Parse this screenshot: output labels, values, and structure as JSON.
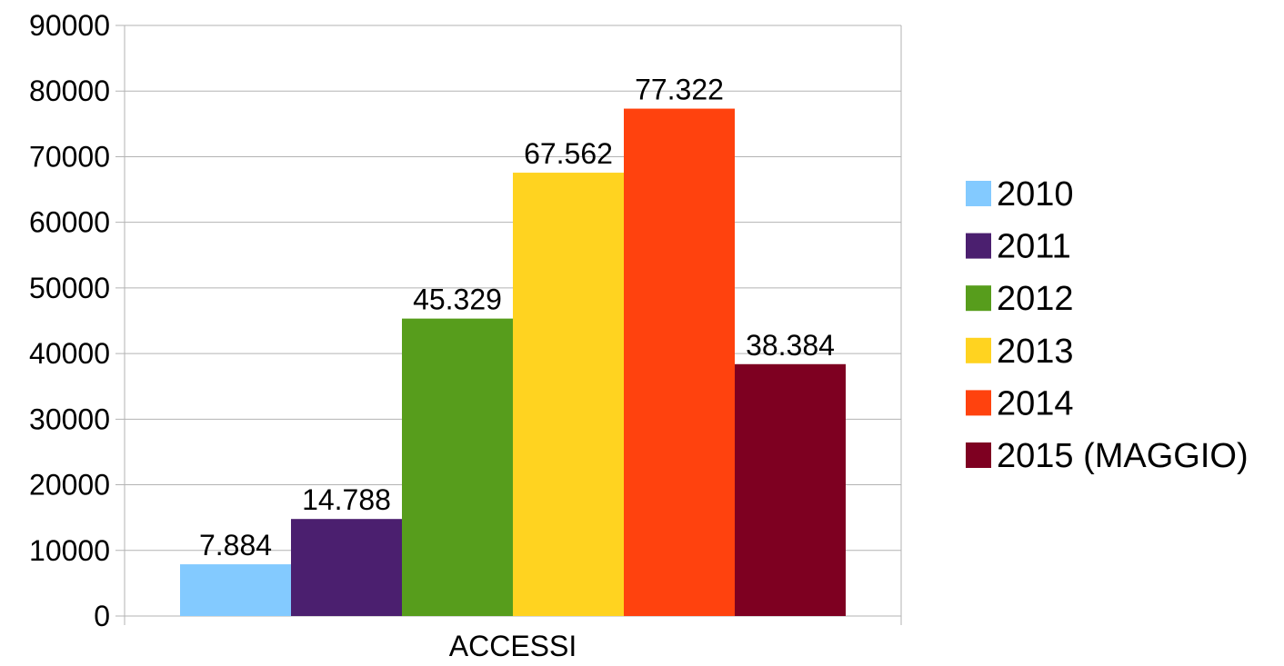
{
  "chart_data": {
    "type": "bar",
    "categories": [
      "ACCESSI"
    ],
    "series": [
      {
        "name": "2010",
        "values": [
          7884
        ],
        "label": "7.884",
        "color": "#83caff"
      },
      {
        "name": "2011",
        "values": [
          14788
        ],
        "label": "14.788",
        "color": "#4b1f6f"
      },
      {
        "name": "2012",
        "values": [
          45329
        ],
        "label": "45.329",
        "color": "#579d1c"
      },
      {
        "name": "2013",
        "values": [
          67562
        ],
        "label": "67.562",
        "color": "#ffd320"
      },
      {
        "name": "2014",
        "values": [
          77322
        ],
        "label": "77.322",
        "color": "#ff420e"
      },
      {
        "name": "2015 (MAGGIO)",
        "values": [
          38384
        ],
        "label": "38.384",
        "color": "#7e0021"
      }
    ],
    "ylim": [
      0,
      90000
    ],
    "yticks": [
      0,
      10000,
      20000,
      30000,
      40000,
      50000,
      60000,
      70000,
      80000,
      90000
    ],
    "title": "",
    "xlabel": "",
    "ylabel": "",
    "grid": true,
    "legend_position": "right"
  }
}
